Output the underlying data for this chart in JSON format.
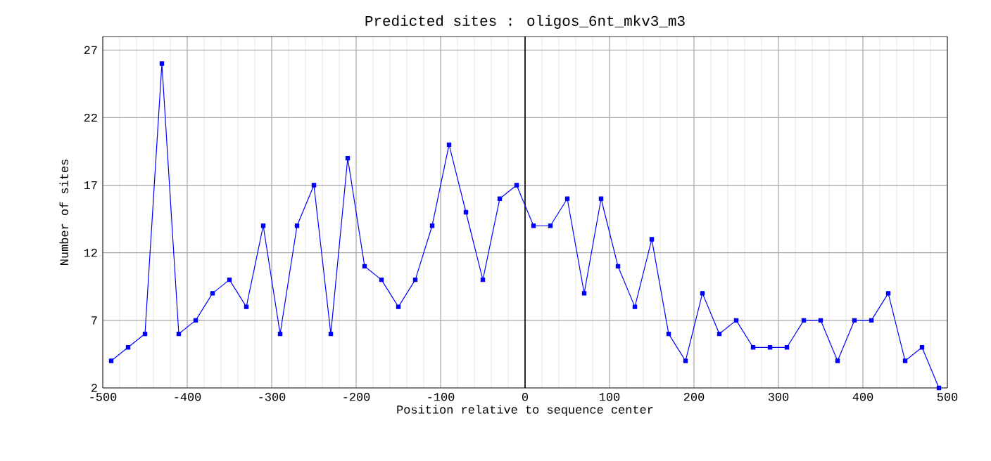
{
  "chart_data": {
    "type": "line",
    "title": "Predicted sites : oligos_6nt_mkv3_m3",
    "xlabel": "Position relative to sequence center",
    "ylabel": "Number of sites",
    "x": [
      -490,
      -470,
      -450,
      -430,
      -410,
      -390,
      -370,
      -350,
      -330,
      -310,
      -290,
      -270,
      -250,
      -230,
      -210,
      -190,
      -170,
      -150,
      -130,
      -110,
      -90,
      -70,
      -50,
      -30,
      -10,
      10,
      30,
      50,
      70,
      90,
      110,
      130,
      150,
      170,
      190,
      210,
      230,
      250,
      270,
      290,
      310,
      330,
      350,
      370,
      390,
      410,
      430,
      450,
      470,
      490
    ],
    "series": [
      {
        "color": "#0000ff",
        "values": [
          4,
          5,
          6,
          26,
          6,
          7,
          9,
          10,
          8,
          14,
          6,
          14,
          17,
          6,
          19,
          11,
          10,
          8,
          10,
          14,
          20,
          15,
          10,
          16,
          17,
          14,
          14,
          16,
          9,
          16,
          11,
          8,
          13,
          6,
          4,
          9,
          6,
          7,
          5,
          5,
          5,
          7,
          7,
          4,
          7,
          7,
          9,
          4,
          5,
          2
        ]
      }
    ],
    "xlim": [
      -500,
      500
    ],
    "xticks": [
      -500,
      -400,
      -300,
      -200,
      -100,
      0,
      100,
      200,
      300,
      400,
      500
    ],
    "ylim": [
      2,
      28
    ],
    "yticks": [
      2,
      7,
      12,
      17,
      22,
      27
    ],
    "ref_lines": [
      {
        "axis": "x",
        "value": 0,
        "color": "#000000"
      }
    ],
    "grid": true,
    "marker": "square",
    "line_style": "solid"
  }
}
